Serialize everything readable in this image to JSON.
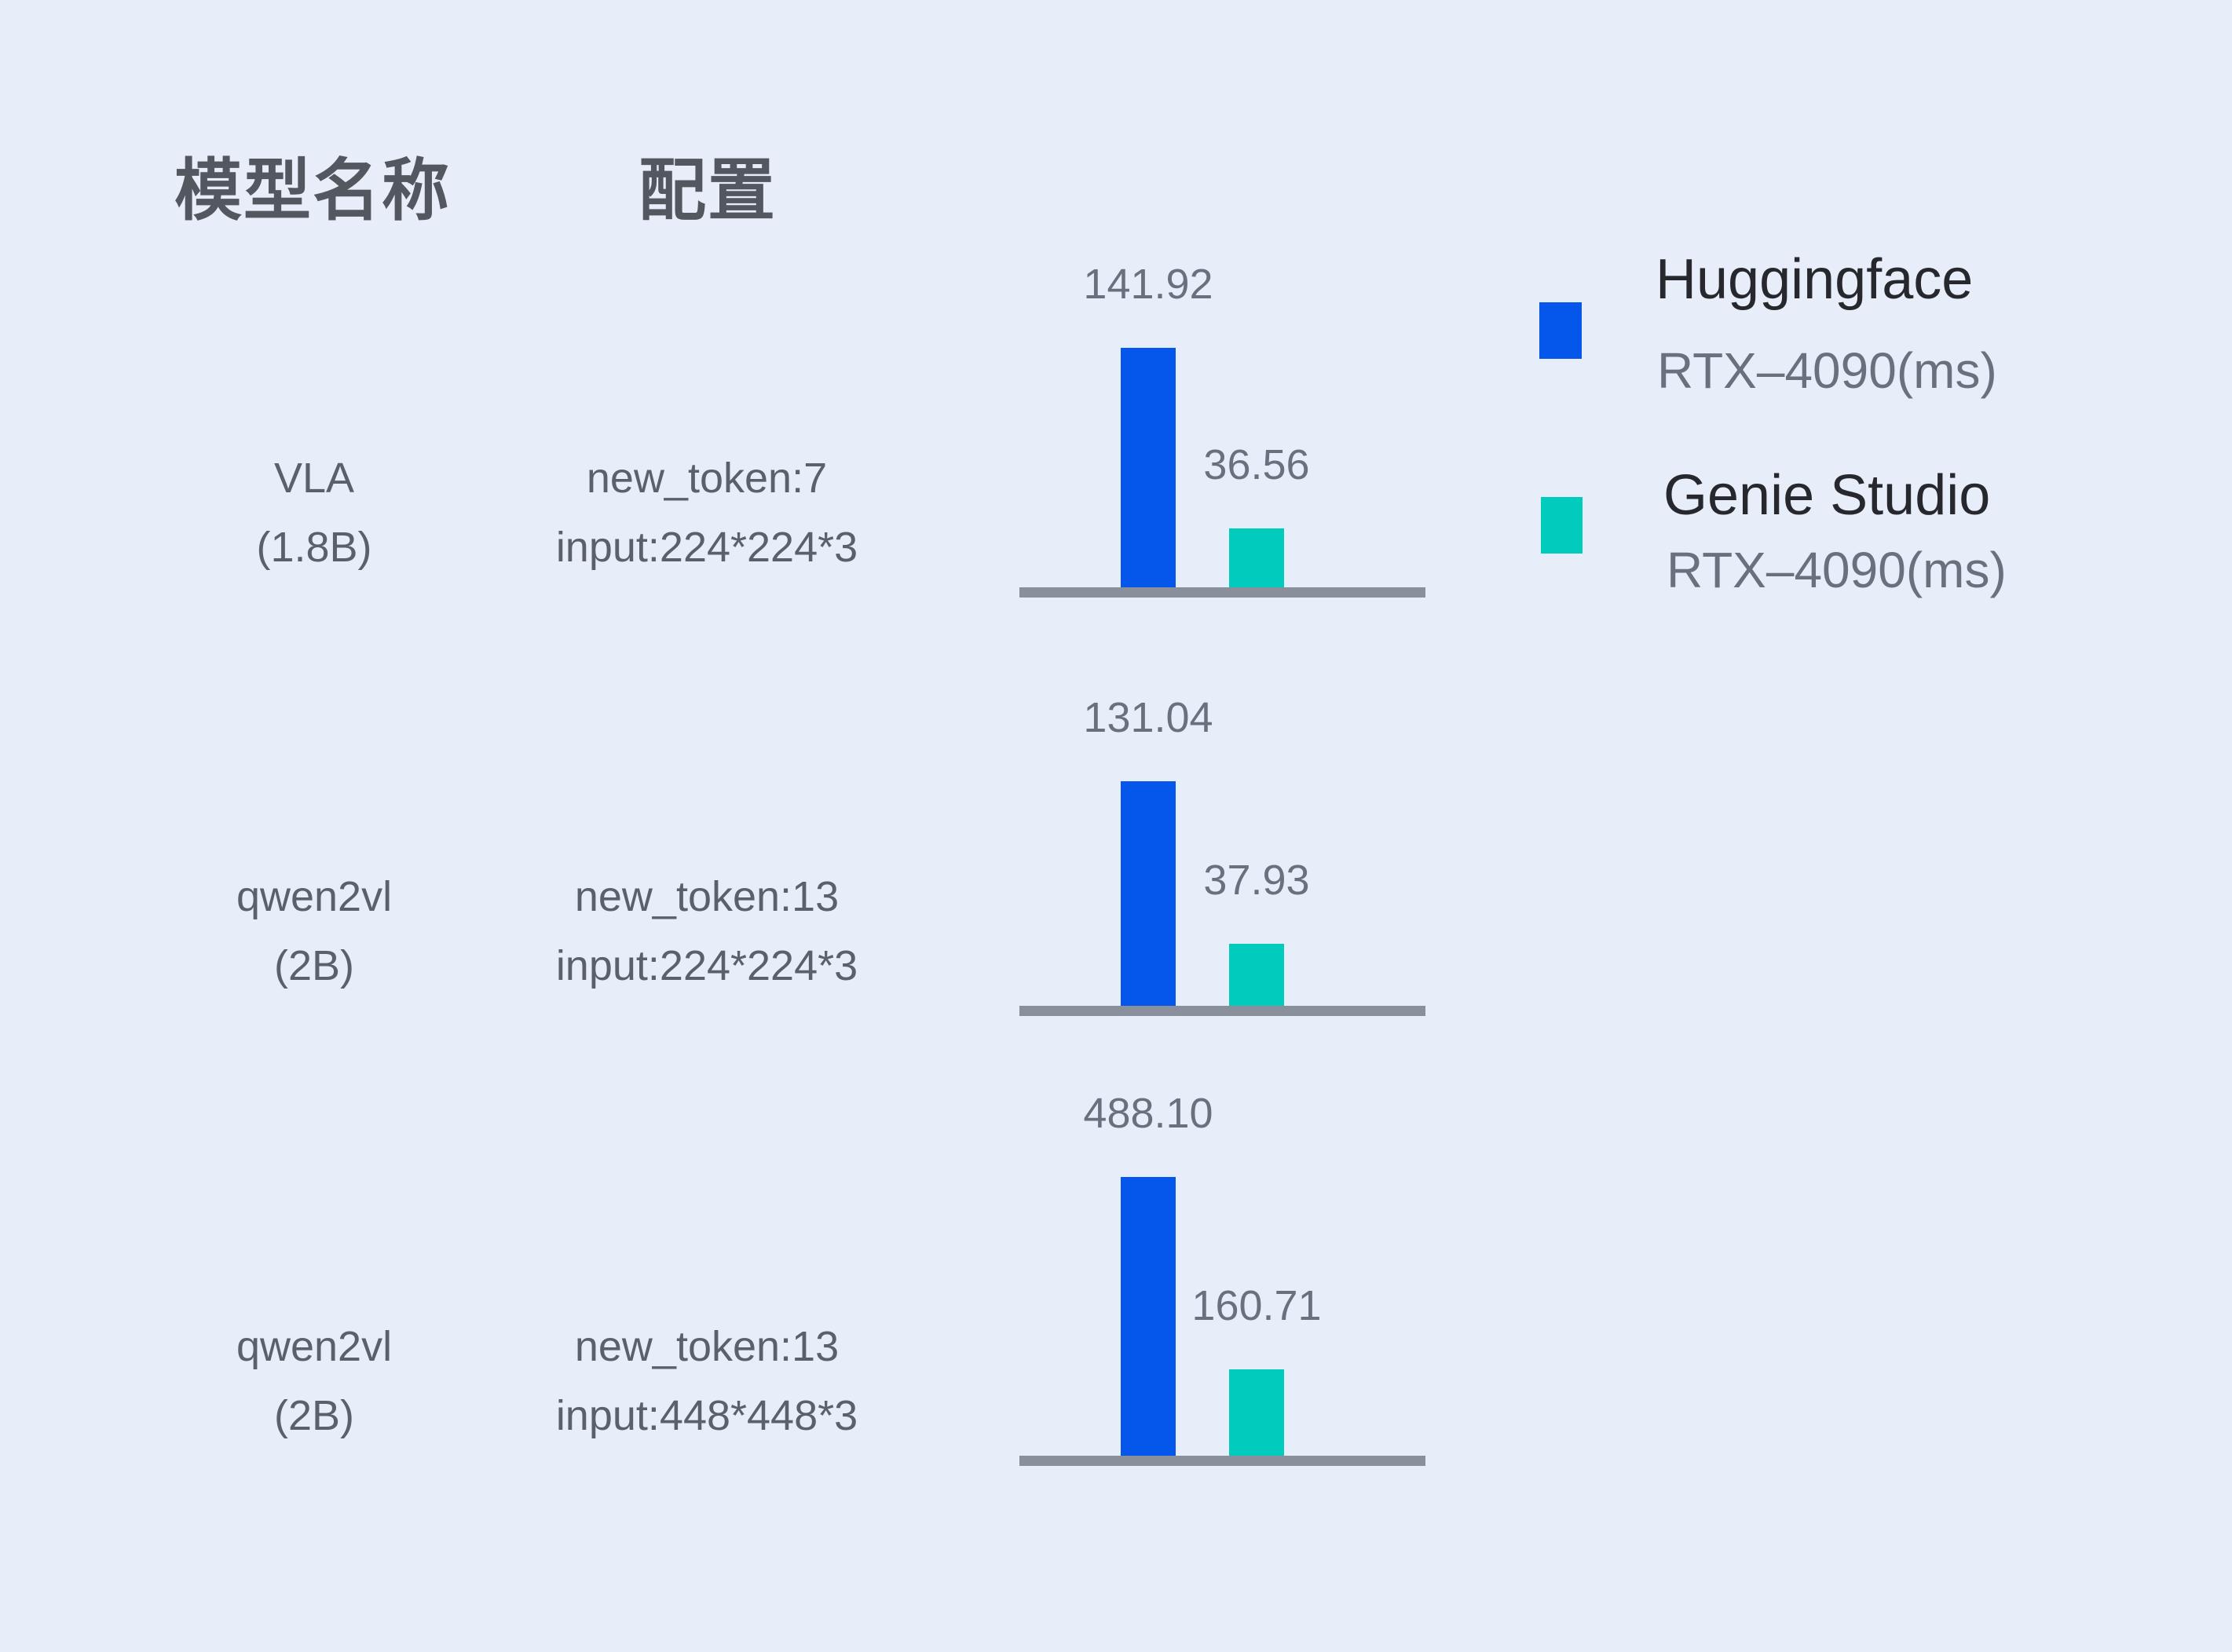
{
  "headers": {
    "model": "模型名称",
    "config": "配置"
  },
  "rows": [
    {
      "model_line1": "VLA",
      "model_line2": "(1.8B)",
      "config_line1": "new_token:7",
      "config_line2": "input:224*224*3",
      "hf_value": "141.92",
      "gs_value": "36.56"
    },
    {
      "model_line1": "qwen2vl",
      "model_line2": "(2B)",
      "config_line1": "new_token:13",
      "config_line2": "input:224*224*3",
      "hf_value": "131.04",
      "gs_value": "37.93"
    },
    {
      "model_line1": "qwen2vl",
      "model_line2": "(2B)",
      "config_line1": "new_token:13",
      "config_line2": "input:448*448*3",
      "hf_value": "488.10",
      "gs_value": "160.71"
    }
  ],
  "legend": {
    "hf_name": "Huggingface",
    "hf_sub": "RTX–4090(ms)",
    "gs_name": "Genie Studio",
    "gs_sub": "RTX–4090(ms)"
  },
  "colors": {
    "background": "#E7EDF9",
    "huggingface_blue": "#0457EA",
    "genie_teal": "#00CBBC",
    "axis_gray": "#8A8F9C",
    "value_text": "#6A707E",
    "label_text": "#5A606C",
    "header_text": "#53575F",
    "legend_title_text": "#26282E"
  },
  "chart_data": {
    "type": "bar",
    "title": "",
    "unit": "ms",
    "categories": [
      "VLA (1.8B) — new_token:7, input:224*224*3",
      "qwen2vl (2B) — new_token:13, input:224*224*3",
      "qwen2vl (2B) — new_token:13, input:448*448*3"
    ],
    "series": [
      {
        "name": "Huggingface RTX–4090(ms)",
        "color": "#0457EA",
        "values": [
          141.92,
          131.04,
          488.1
        ]
      },
      {
        "name": "Genie Studio RTX–4090(ms)",
        "color": "#00CBBC",
        "values": [
          36.56,
          37.93,
          160.71
        ]
      }
    ],
    "grid": false,
    "legend_position": "top-right",
    "value_labels_shown": true
  }
}
